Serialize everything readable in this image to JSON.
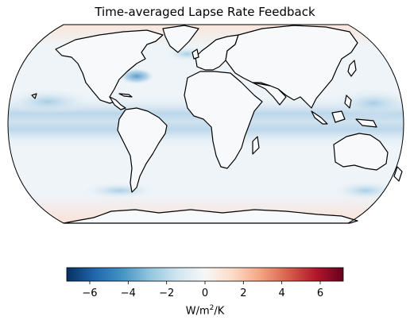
{
  "title": "Time-averaged Lapse Rate Feedback",
  "colorbar": {
    "label_prefix": "W/m",
    "label_superscript": "2",
    "label_suffix": "/K",
    "min": -7.2,
    "max": 7.2,
    "ticks": [
      {
        "value": -6,
        "label": "−6"
      },
      {
        "value": -4,
        "label": "−4"
      },
      {
        "value": -2,
        "label": "−2"
      },
      {
        "value": 0,
        "label": "0"
      },
      {
        "value": 2,
        "label": "2"
      },
      {
        "value": 4,
        "label": "4"
      },
      {
        "value": 6,
        "label": "6"
      }
    ],
    "colormap": "RdBu_r",
    "colors": [
      "#053061",
      "#2166ac",
      "#4393c3",
      "#92c5de",
      "#d1e5f0",
      "#f7f7f7",
      "#fddbc7",
      "#f4a582",
      "#d6604d",
      "#b2182b",
      "#67001f"
    ]
  },
  "map": {
    "projection": "Robinson",
    "ocean_background": "#f4f8fb",
    "land_color": "#f7f9fb",
    "coastline_color": "#000000"
  }
}
